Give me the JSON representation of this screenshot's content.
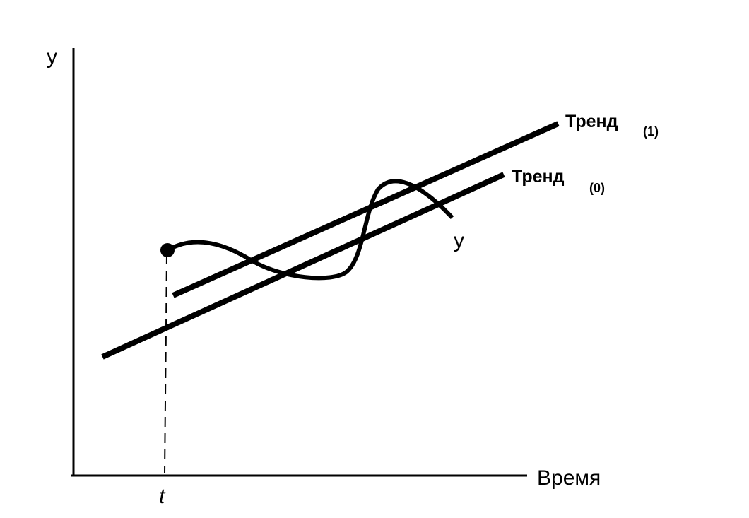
{
  "axes": {
    "y_label": "y",
    "x_label": "Время",
    "t_label": "t"
  },
  "trends": [
    {
      "label": "Тренд",
      "subscript": "(1)"
    },
    {
      "label": "Тренд",
      "subscript": "(0)"
    }
  ],
  "curve": {
    "label": "y"
  }
}
